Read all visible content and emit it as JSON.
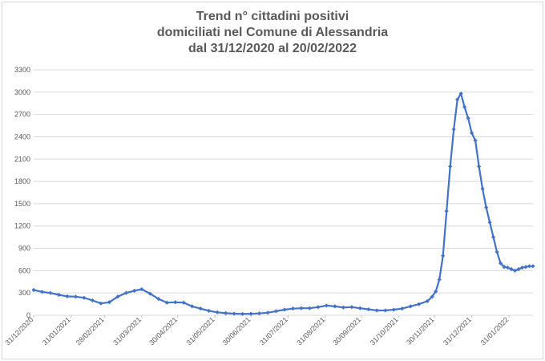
{
  "chart_data": {
    "type": "line",
    "title_lines": [
      "Trend n° cittadini positivi",
      "domiciliati nel Comune di Alessandria",
      "dal 31/12/2020 al 20/02/2022"
    ],
    "xlabel": "",
    "ylabel": "",
    "ylim": [
      0,
      3300
    ],
    "yticks": [
      "0",
      "300",
      "600",
      "900",
      "1200",
      "1500",
      "1800",
      "2100",
      "2400",
      "2700",
      "3000",
      "3300"
    ],
    "xlim": [
      "2020-12-31",
      "2022-02-20"
    ],
    "xticks": [
      {
        "date": "2020-12-31",
        "label": "31/12/2020"
      },
      {
        "date": "2021-01-31",
        "label": "31/01/2021"
      },
      {
        "date": "2021-02-28",
        "label": "28/02/2021"
      },
      {
        "date": "2021-03-31",
        "label": "31/03/2021"
      },
      {
        "date": "2021-04-30",
        "label": "30/04/2021"
      },
      {
        "date": "2021-05-31",
        "label": "31/05/2021"
      },
      {
        "date": "2021-06-30",
        "label": "30/06/2021"
      },
      {
        "date": "2021-07-31",
        "label": "31/07/2021"
      },
      {
        "date": "2021-08-31",
        "label": "31/08/2021"
      },
      {
        "date": "2021-09-30",
        "label": "30/09/2021"
      },
      {
        "date": "2021-10-31",
        "label": "31/10/2021"
      },
      {
        "date": "2021-11-30",
        "label": "30/11/2021"
      },
      {
        "date": "2021-12-31",
        "label": "31/12/2021"
      },
      {
        "date": "2022-01-31",
        "label": "31/01/2022"
      }
    ],
    "grid": true,
    "legend": "none",
    "line_color": "#4472c4",
    "marker": "diamond",
    "series": [
      {
        "x": [
          "2020-12-31",
          "2021-01-07",
          "2021-01-14",
          "2021-01-21",
          "2021-01-28",
          "2021-02-04",
          "2021-02-11",
          "2021-02-18",
          "2021-02-25",
          "2021-03-04",
          "2021-03-11",
          "2021-03-18",
          "2021-03-25",
          "2021-03-31",
          "2021-04-07",
          "2021-04-14",
          "2021-04-21",
          "2021-04-28",
          "2021-05-05",
          "2021-05-12",
          "2021-05-19",
          "2021-05-26",
          "2021-06-02",
          "2021-06-09",
          "2021-06-16",
          "2021-06-23",
          "2021-06-30",
          "2021-07-07",
          "2021-07-14",
          "2021-07-21",
          "2021-07-28",
          "2021-08-04",
          "2021-08-11",
          "2021-08-18",
          "2021-08-25",
          "2021-09-01",
          "2021-09-08",
          "2021-09-15",
          "2021-09-22",
          "2021-09-29",
          "2021-10-06",
          "2021-10-13",
          "2021-10-20",
          "2021-10-27",
          "2021-11-03",
          "2021-11-10",
          "2021-11-17",
          "2021-11-24",
          "2021-11-28",
          "2021-12-01",
          "2021-12-04",
          "2021-12-07",
          "2021-12-10",
          "2021-12-13",
          "2021-12-16",
          "2021-12-19",
          "2021-12-22",
          "2021-12-25",
          "2021-12-28",
          "2021-12-31",
          "2022-01-03",
          "2022-01-06",
          "2022-01-09",
          "2022-01-12",
          "2022-01-15",
          "2022-01-18",
          "2022-01-21",
          "2022-01-24",
          "2022-01-27",
          "2022-01-30",
          "2022-02-02",
          "2022-02-05",
          "2022-02-08",
          "2022-02-11",
          "2022-02-14",
          "2022-02-17",
          "2022-02-20"
        ],
        "y": [
          340,
          315,
          300,
          275,
          255,
          250,
          235,
          200,
          160,
          175,
          250,
          300,
          330,
          350,
          290,
          220,
          170,
          175,
          170,
          120,
          90,
          60,
          40,
          28,
          22,
          18,
          20,
          25,
          35,
          55,
          75,
          90,
          95,
          95,
          110,
          130,
          120,
          105,
          110,
          95,
          80,
          65,
          65,
          75,
          90,
          120,
          150,
          190,
          250,
          320,
          480,
          800,
          1400,
          2000,
          2500,
          2900,
          2980,
          2800,
          2650,
          2450,
          2350,
          2000,
          1700,
          1450,
          1250,
          1050,
          850,
          700,
          650,
          640,
          620,
          600,
          620,
          640,
          650,
          660,
          660
        ]
      }
    ]
  }
}
